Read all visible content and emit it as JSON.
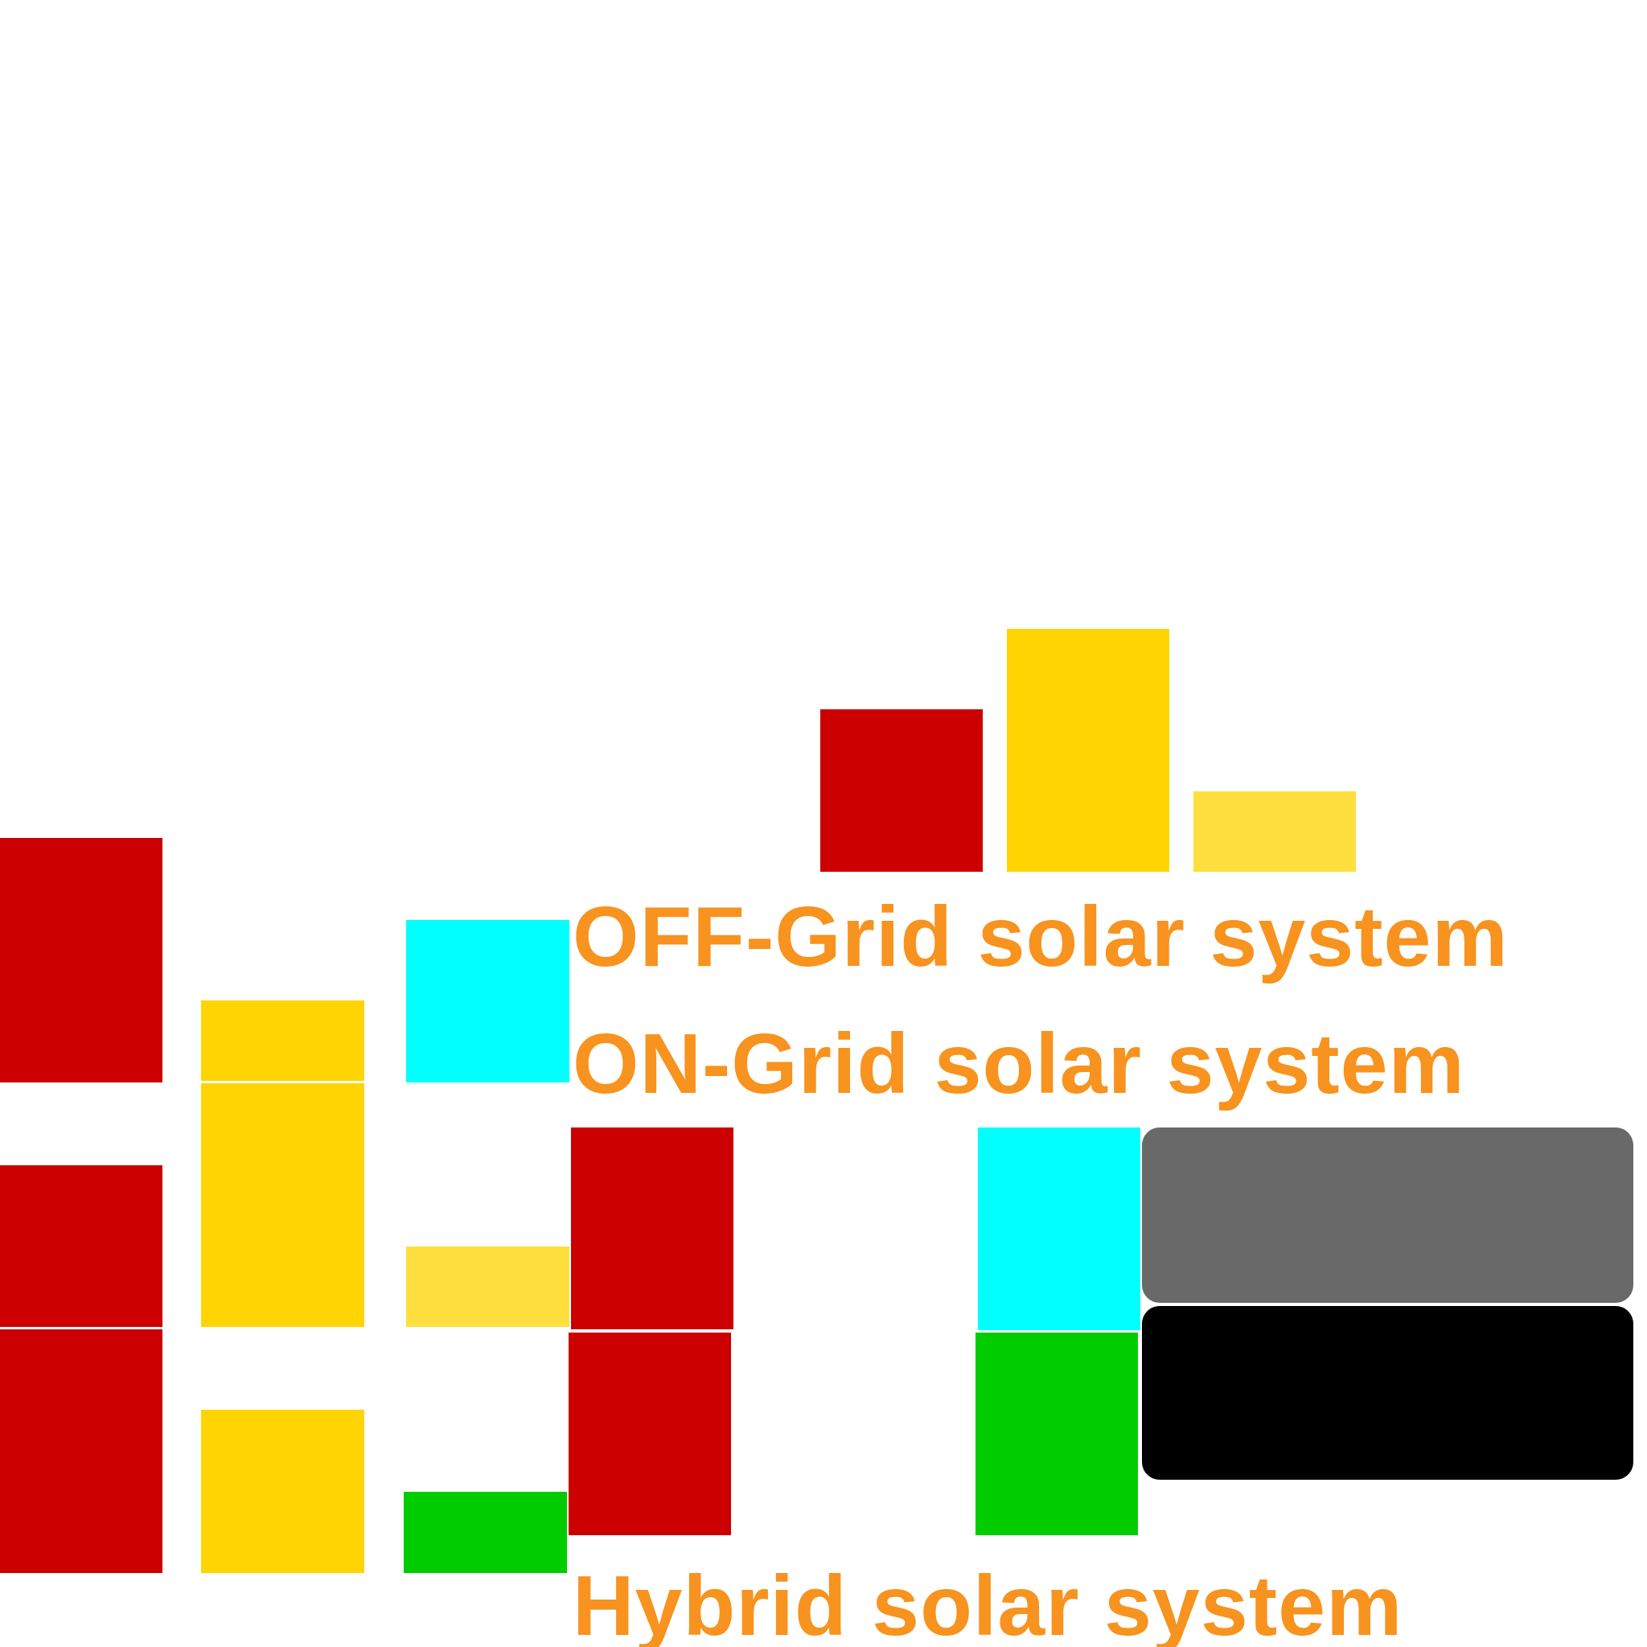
{
  "colors": {
    "red": "#cc0000",
    "gold": "#ffd400",
    "light_gold": "#ffdf3d",
    "cyan": "#00ffff",
    "green": "#00cc00",
    "gray": "#696969",
    "black": "#000000",
    "orange": "#f7931e"
  },
  "labels": {
    "off_grid": "OFF-Grid solar system",
    "on_grid": "ON-Grid solar system",
    "hybrid": "Hybrid solar system"
  }
}
